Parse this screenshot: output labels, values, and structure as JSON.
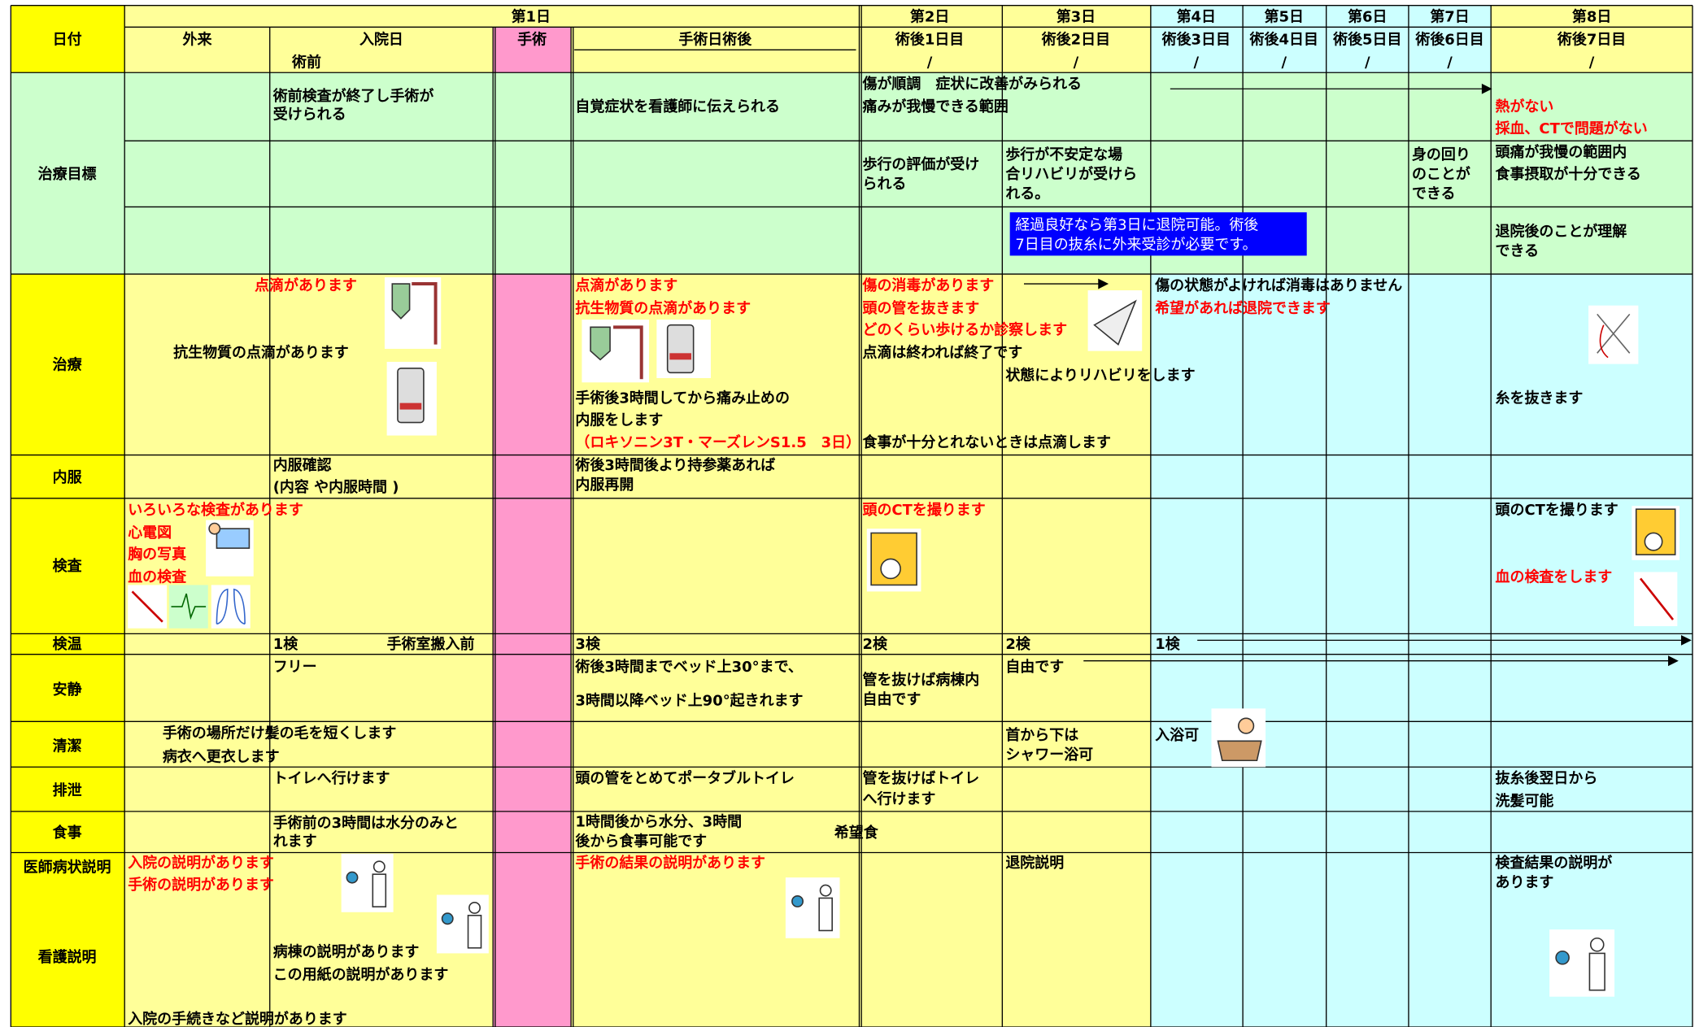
{
  "header": {
    "date_label": "日付",
    "day1": "第1日",
    "day2": "第2日",
    "day3": "第3日",
    "day4": "第4日",
    "day5": "第5日",
    "day6": "第6日",
    "day7": "第7日",
    "day8": "第8日",
    "outpatient": "外来",
    "admission": "入院日",
    "preop": "術前",
    "surgery": "手術",
    "postop_day": "手術日術後",
    "post1": "術後1日目",
    "post2": "術後2日目",
    "post3": "術後3日目",
    "post4": "術後4日目",
    "post5": "術後5日目",
    "post6": "術後6日目",
    "post7": "術後7日目",
    "slash": "/"
  },
  "rows": [
    {
      "label": "治療目標",
      "texts": [
        "術前検査が終了し手術が",
        "受けられる",
        "自覚症状を看護師に伝えられる",
        "傷が順調　症状に改善がみられる",
        "痛みが我慢できる範囲",
        "熱がない",
        "採血、CTで問題がない",
        "歩行の評価が受け",
        "られる",
        "歩行が不安定な場",
        "合リハビリが受けら",
        "れる。",
        "身の回り",
        "のことが",
        "できる",
        "頭痛が我慢の範囲内",
        "食事摂取が十分できる",
        "経過良好なら第3日に退院可能。術後",
        "7日目の抜糸に外来受診が必要です。",
        "退院後のことが理解",
        "できる"
      ]
    },
    {
      "label": "治療",
      "texts": [
        "点滴があります",
        "抗生物質の点滴があります",
        "点滴があります",
        "抗生物質の点滴があります",
        "手術後3時間してから痛み止めの",
        "内服をします",
        "（ロキソニン3T・マーズレンS1.5　3日）",
        "傷の消毒があります",
        "頭の管を抜きます",
        "どのくらい歩けるか診察します",
        "点滴は終われば終了です",
        "状態によりリハビリをします",
        "食事が十分とれないときは点滴します",
        "傷の状態がよければ消毒はありません",
        "希望があれば退院できます",
        "糸を抜きます"
      ]
    },
    {
      "label": "内服",
      "texts": [
        "内服確認",
        "(内容 や内服時間 )",
        "術後3時間後より持参薬あれば",
        "内服再開"
      ]
    },
    {
      "label": "検査",
      "texts": [
        "いろいろな検査があります",
        "心電図",
        "胸の写真",
        "血の検査",
        "頭のCTを撮ります",
        "頭のCTを撮ります",
        "血の検査をします"
      ]
    },
    {
      "label": "検温",
      "texts": [
        "1検",
        "手術室搬入前",
        "3検",
        "2検",
        "2検",
        "1検"
      ]
    },
    {
      "label": "安静",
      "texts": [
        "フリー",
        "術後3時間までベッド上30°まで、",
        "3時間以降ベッド上90°起きれます",
        "管を抜けば病棟内",
        "自由です",
        "自由です"
      ]
    },
    {
      "label": "清潔",
      "texts": [
        "手術の場所だけ髪の毛を短くします",
        "病衣へ更衣します",
        "首から下は",
        "シャワー浴可",
        "入浴可"
      ]
    },
    {
      "label": "排泄",
      "texts": [
        "トイレへ行けます",
        "頭の管をとめてポータブルトイレ",
        "管を抜けばトイレ",
        "へ行けます",
        "抜糸後翌日から",
        "洗髪可能"
      ]
    },
    {
      "label": "食事",
      "texts": [
        "手術前の3時間は水分のみと",
        "れます",
        "1時間後から水分、3時間",
        "後から食事可能です",
        "希望食"
      ]
    },
    {
      "label": "医師病状説明",
      "sub_label": "看護説明",
      "texts": [
        "入院の説明があります",
        "手術の説明があります",
        "病棟の説明があります",
        "この用紙の説明があります",
        "入院の手続きなど説明があります",
        "手術の結果の説明があります",
        "退院説明",
        "検査結果の説明が",
        "あります"
      ]
    }
  ]
}
